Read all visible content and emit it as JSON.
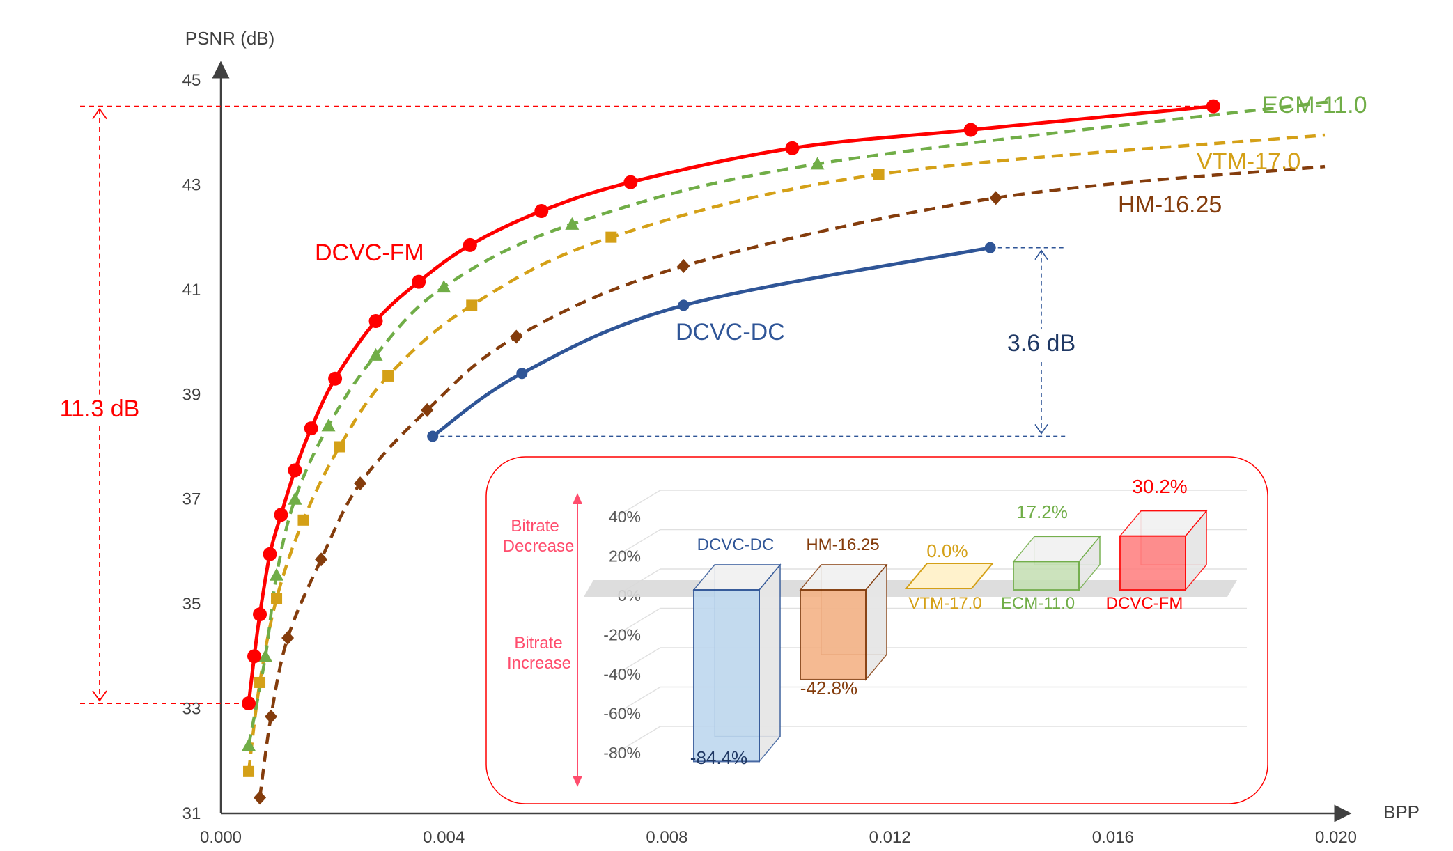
{
  "chart_data": [
    {
      "type": "line",
      "xlabel": "BPP",
      "ylabel": "PSNR (dB)",
      "xlim": [
        0.0,
        0.02
      ],
      "ylim": [
        31,
        45
      ],
      "x_ticks": [
        "0.000",
        "0.004",
        "0.008",
        "0.012",
        "0.016",
        "0.020"
      ],
      "y_ticks": [
        "31",
        "33",
        "35",
        "37",
        "39",
        "41",
        "43",
        "45"
      ],
      "colors": {
        "DCVC-FM": "#ff0000",
        "ECM-11.0": "#70ad47",
        "VTM-17.0": "#d4a017",
        "HM-16.25": "#843c0c",
        "DCVC-DC": "#2f5597"
      },
      "series": [
        {
          "name": "DCVC-FM",
          "style": "solid",
          "marker": "circle",
          "x": [
            0.0005,
            0.0006,
            0.0007,
            0.00088,
            0.00108,
            0.00133,
            0.00162,
            0.00205,
            0.00278,
            0.00355,
            0.00447,
            0.00575,
            0.00735,
            0.01025,
            0.01345,
            0.0178
          ],
          "y": [
            33.1,
            34.0,
            34.8,
            35.95,
            36.7,
            37.55,
            38.35,
            39.3,
            40.4,
            41.15,
            41.85,
            42.5,
            43.05,
            43.7,
            44.05,
            44.5
          ],
          "end_extension": {
            "x": [
              0.0178
            ],
            "y": [
              44.5
            ]
          }
        },
        {
          "name": "ECM-11.0",
          "style": "dashed",
          "marker": "triangle",
          "x": [
            0.0005,
            0.0008,
            0.001,
            0.00133,
            0.00193,
            0.00278,
            0.004,
            0.0063,
            0.0107,
            0.02
          ],
          "y": [
            32.3,
            34.0,
            35.55,
            37.0,
            38.4,
            39.75,
            41.05,
            42.25,
            43.4,
            44.6
          ]
        },
        {
          "name": "VTM-17.0",
          "style": "dashed",
          "marker": "square",
          "x": [
            0.0005,
            0.0007,
            0.001,
            0.00148,
            0.00213,
            0.003,
            0.0045,
            0.007,
            0.0118,
            0.0198
          ],
          "y": [
            31.8,
            33.5,
            35.1,
            36.6,
            38.0,
            39.35,
            40.7,
            42.0,
            43.2,
            43.95
          ]
        },
        {
          "name": "HM-16.25",
          "style": "dashed",
          "marker": "diamond",
          "x": [
            0.0007,
            0.0009,
            0.0012,
            0.0018,
            0.0025,
            0.0037,
            0.0053,
            0.0083,
            0.0139,
            0.0198
          ],
          "y": [
            31.3,
            32.85,
            34.35,
            35.85,
            37.3,
            38.7,
            40.1,
            41.45,
            42.75,
            43.35
          ]
        },
        {
          "name": "DCVC-DC",
          "style": "solid",
          "marker": "circle",
          "x": [
            0.0038,
            0.0054,
            0.0083,
            0.0138
          ],
          "y": [
            38.2,
            39.4,
            40.7,
            41.8
          ]
        }
      ],
      "labels": {
        "dcvc_fm": "DCVC-FM",
        "ecm": "ECM-11.0",
        "vtm": "VTM-17.0",
        "hm": "HM-16.25",
        "dcvc_dc": "DCVC-DC"
      },
      "annotations": {
        "left_gap": "11.3 dB",
        "right_gap": "3.6 dB"
      }
    },
    {
      "type": "bar",
      "categories": [
        "DCVC-DC",
        "HM-16.25",
        "VTM-17.0",
        "ECM-11.0",
        "DCVC-FM"
      ],
      "values": [
        -84.4,
        -42.8,
        0.0,
        17.2,
        30.2
      ],
      "value_labels": [
        "-84.4%",
        "-42.8%",
        "0.0%",
        "17.2%",
        "30.2%"
      ],
      "y_ticks": [
        "40%",
        "20%",
        "0%",
        "-20%",
        "-40%",
        "-60%",
        "-80%"
      ],
      "ylim": [
        -80,
        40
      ],
      "colors": [
        "#2f5597",
        "#843c0c",
        "#d4a017",
        "#70ad47",
        "#ff0000"
      ],
      "fills": [
        "#bdd7ee",
        "#f4b183",
        "#fff2cc",
        "#c5e0b4",
        "#ff8080"
      ],
      "side_labels": {
        "decrease": [
          "Bitrate",
          "Decrease"
        ],
        "increase": [
          "Bitrate",
          "Increase"
        ]
      }
    }
  ]
}
